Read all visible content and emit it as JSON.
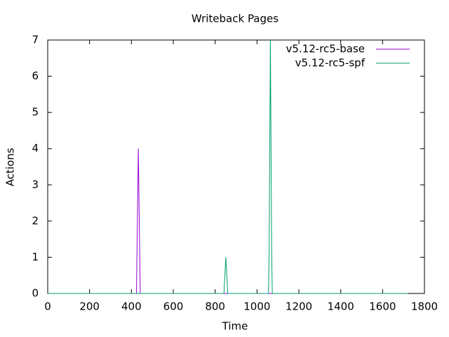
{
  "chart_data": {
    "type": "line",
    "title": "Writeback Pages",
    "x_label": "Time",
    "y_label": "Actions",
    "series": [
      {
        "name": "v5.12-rc5-base",
        "color": "#9400d3",
        "x": [
          0,
          424,
          433,
          442,
          1720
        ],
        "values": [
          0,
          0,
          4,
          0,
          0
        ]
      },
      {
        "name": "v5.12-rc5-spf",
        "color": "#009e73",
        "x": [
          0,
          842,
          851,
          860,
          1055,
          1058,
          1064,
          1070,
          1073,
          1720
        ],
        "values": [
          0,
          0,
          1,
          0,
          0,
          1.2,
          7,
          1.2,
          0,
          0
        ]
      }
    ],
    "xlim": [
      0,
      1800
    ],
    "xticks": [
      0,
      200,
      400,
      600,
      800,
      1000,
      1200,
      1400,
      1600,
      1800
    ],
    "ylim": [
      0,
      7
    ],
    "yticks": [
      0,
      1,
      2,
      3,
      4,
      5,
      6,
      7
    ],
    "legend": "top-right",
    "grid": false
  }
}
